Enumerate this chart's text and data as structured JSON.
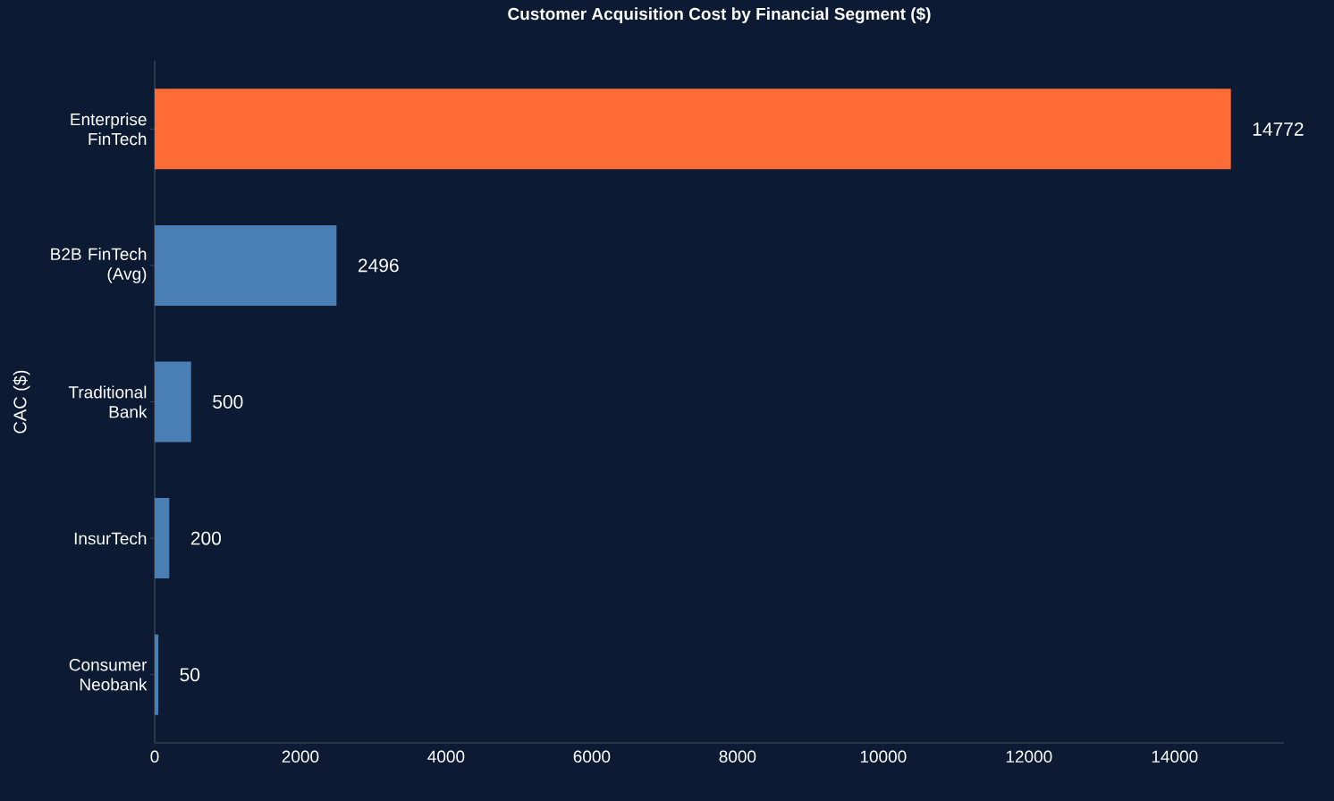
{
  "chart_data": {
    "type": "bar",
    "orientation": "horizontal",
    "title": "Customer Acquisition Cost by Financial Segment ($)",
    "ylabel": "CAC ($)",
    "categories": [
      "Enterprise FinTech",
      "B2B FinTech (Avg)",
      "Traditional Bank",
      "InsurTech",
      "Consumer Neobank"
    ],
    "values": [
      14772,
      2496,
      500,
      200,
      50
    ],
    "colors": [
      "#ff6b35",
      "#4a7fb5",
      "#4a7fb5",
      "#4a7fb5",
      "#4a7fb5"
    ],
    "xlim": [
      0,
      15500
    ],
    "xticks": [
      0,
      2000,
      4000,
      6000,
      8000,
      10000,
      12000,
      14000
    ],
    "data_labels": true
  }
}
